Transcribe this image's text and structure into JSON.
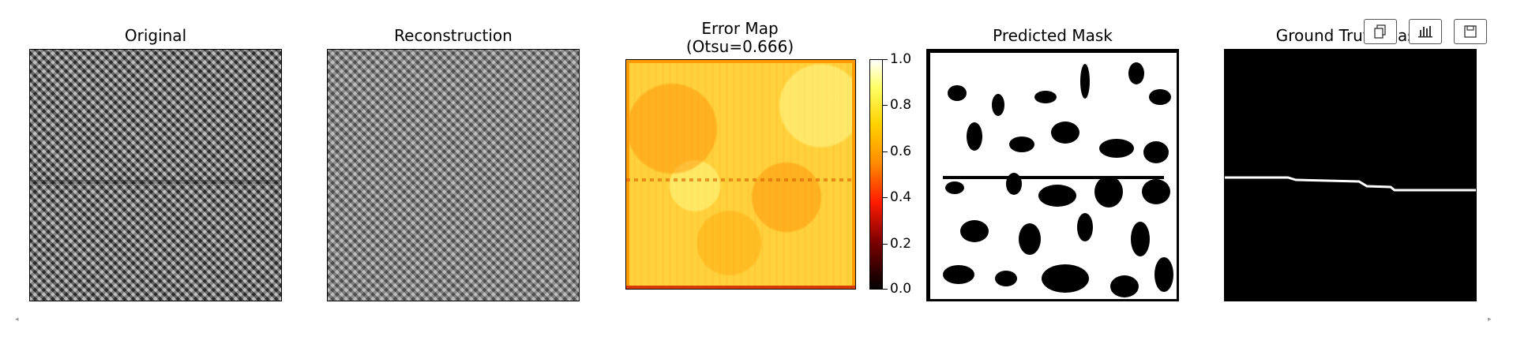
{
  "figure": {
    "panels": [
      {
        "id": "original",
        "title": "Original"
      },
      {
        "id": "reconstruction",
        "title": "Reconstruction"
      },
      {
        "id": "error",
        "title": "Error Map\n(Otsu=0.666)"
      },
      {
        "id": "predicted",
        "title": "Predicted Mask"
      },
      {
        "id": "groundtruth",
        "title": "Ground Truth Mask"
      }
    ],
    "colorbar": {
      "ticks": [
        "1.0",
        "0.8",
        "0.6",
        "0.4",
        "0.2",
        "0.0"
      ],
      "colormap": "hot"
    }
  },
  "toolbar": {
    "buttons": [
      {
        "icon": "copy-icon"
      },
      {
        "icon": "bar-chart-icon"
      },
      {
        "icon": "save-icon"
      }
    ]
  },
  "colors": {
    "background": "#ffffff",
    "mask_fg": "#ffffff",
    "mask_bg": "#000000"
  }
}
